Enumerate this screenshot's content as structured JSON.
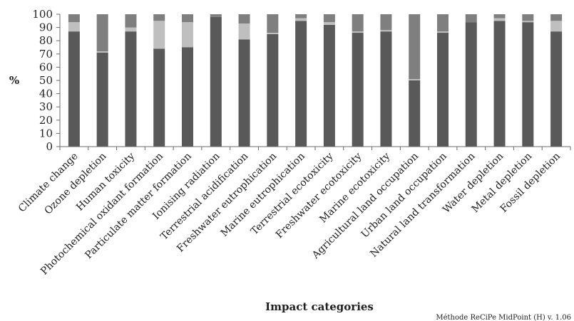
{
  "chart_data": {
    "type": "bar",
    "stacked": true,
    "xlabel": "Impact categories",
    "ylabel": "%",
    "method_note": "Méthode  ReCiPe MidPoint (H)  v. 1.06",
    "ylim": [
      0,
      100
    ],
    "y_ticks": [
      0,
      10,
      20,
      30,
      40,
      50,
      60,
      70,
      80,
      90,
      100
    ],
    "y_tick_labels": [
      "0",
      "10",
      "20",
      "30",
      "40",
      "50",
      "60",
      "70",
      "80",
      "90",
      "100"
    ],
    "grid": false,
    "legend": "none",
    "categories": [
      "Climate change",
      "Ozone depletion",
      "Human toxicity",
      "Photochemical oxidant formation",
      "Particulate matter formation",
      "Ionising radiation",
      "Terrestrial acidification",
      "Freshwater eutrophication",
      "Marine eutrophication",
      "Terrestrial ecotoxicity",
      "Freshwater ecotoxicity",
      "Marine ecotoxicity",
      "Agricultural land occupation",
      "Urban land occupation",
      "Natural land transformation",
      "Water depletion",
      "Metal depletion",
      "Fossil depletion"
    ],
    "series": [
      {
        "color": "#595959",
        "values": [
          87,
          71,
          87,
          74,
          75,
          98,
          81,
          85,
          95,
          92,
          86,
          87,
          50,
          86,
          94,
          95,
          94,
          87
        ]
      },
      {
        "color": "#bfbfbf",
        "values": [
          7,
          1,
          3,
          21,
          19,
          0,
          12,
          1,
          2,
          2,
          1,
          1,
          1,
          1,
          0,
          2,
          1,
          8
        ]
      },
      {
        "color": "#7f7f7f",
        "values": [
          6,
          28,
          10,
          5,
          6,
          2,
          7,
          14,
          3,
          6,
          13,
          12,
          49,
          13,
          6,
          3,
          5,
          5
        ]
      }
    ]
  }
}
